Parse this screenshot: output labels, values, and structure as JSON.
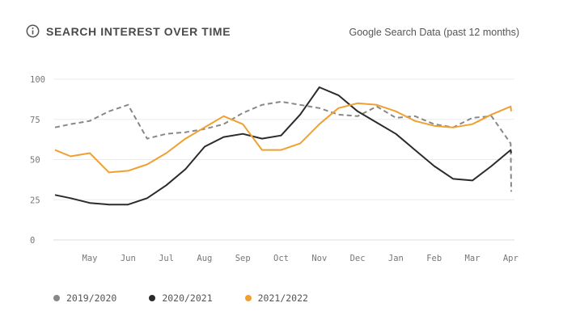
{
  "header": {
    "title": "SEARCH INTEREST OVER TIME",
    "source": "Google Search Data (past 12 months)",
    "icon": "info-icon"
  },
  "chart_data": {
    "type": "line",
    "title": "SEARCH INTEREST OVER TIME",
    "ylim": [
      0,
      100
    ],
    "yticks": [
      0,
      25,
      50,
      75,
      100
    ],
    "grid": true,
    "legend_position": "bottom-left",
    "x_labels": [
      "May",
      "Jun",
      "Jul",
      "Aug",
      "Sep",
      "Oct",
      "Nov",
      "Dec",
      "Jan",
      "Feb",
      "Mar",
      "Apr"
    ],
    "x": [
      0,
      0.5,
      1,
      1.5,
      2,
      2.5,
      3,
      3.5,
      4,
      4.5,
      5,
      5.5,
      6,
      6.5,
      7,
      7.5,
      8,
      8.5,
      9,
      9.5,
      10,
      10.5,
      11,
      11.5,
      12,
      12.5
    ],
    "series": [
      {
        "name": "2019/2020",
        "color": "#888888",
        "dashed": true,
        "values": [
          70,
          72,
          74,
          80,
          84,
          63,
          66,
          67,
          69,
          72,
          79,
          84,
          86,
          84,
          82,
          78,
          77,
          83,
          76,
          77,
          72,
          70,
          76,
          77,
          60,
          30
        ]
      },
      {
        "name": "2020/2021",
        "color": "#2b2b2b",
        "dashed": false,
        "values": [
          28,
          26,
          23,
          22,
          22,
          26,
          34,
          44,
          58,
          64,
          66,
          63,
          65,
          78,
          95,
          90,
          80,
          73,
          66,
          56,
          46,
          38,
          37,
          46,
          56,
          54
        ]
      },
      {
        "name": "2021/2022",
        "color": "#f0a030",
        "dashed": false,
        "values": [
          56,
          52,
          54,
          42,
          43,
          47,
          54,
          63,
          70,
          77,
          72,
          56,
          56,
          60,
          72,
          82,
          85,
          84,
          80,
          74,
          71,
          70,
          72,
          78,
          83,
          80
        ]
      }
    ]
  }
}
